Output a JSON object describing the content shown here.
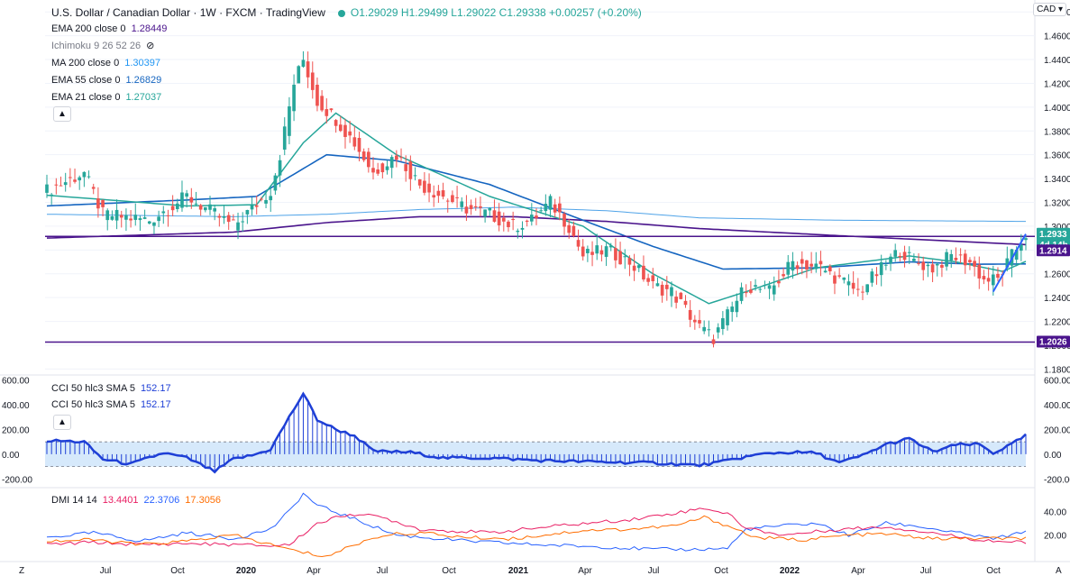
{
  "header": {
    "symbol": "U.S. Dollar / Canadian Dollar · 1W · FXCM · TradingView",
    "ohlc": "O1.29029  H1.29499  L1.29022  C1.29338  +0.00257 (+0.20%)",
    "currency": "CAD"
  },
  "indicators": [
    {
      "label": "EMA 200 close 0",
      "value": "1.28449",
      "color": "#4a148c"
    },
    {
      "label": "Ichimoku 9 26 52 26",
      "value": "",
      "color": "#787b86"
    },
    {
      "label": "MA 200 close 0",
      "value": "1.30397",
      "color": "#2196f3"
    },
    {
      "label": "EMA 55 close 0",
      "value": "1.26829",
      "color": "#1565c0"
    },
    {
      "label": "EMA 21 close 0",
      "value": "1.27037",
      "color": "#26a69a"
    }
  ],
  "cci_legends": [
    {
      "label": "CCI 50 hlc3 SMA 5",
      "value": "152.17"
    },
    {
      "label": "CCI 50 hlc3 SMA 5",
      "value": "152.17"
    }
  ],
  "dmi_legend": {
    "label": "DMI 14 14",
    "v1": "13.4401",
    "v2": "22.3706",
    "v3": "17.3056"
  },
  "colors": {
    "up": "#26a69a",
    "down": "#ef5350",
    "hline": "#4a148c",
    "cci": "#1e3fd6",
    "cci_band": "#d6e9fb",
    "dmi_plus": "#2962ff",
    "dmi_minus": "#e91e63",
    "adx": "#ff6d00"
  },
  "price_badges": [
    {
      "text": "1.2933",
      "value": 1.2933,
      "bg": "#26a69a"
    },
    {
      "text": "4d 14h",
      "value": 1.2933,
      "bg": "#26a69a"
    },
    {
      "text": "1.2914",
      "value": 1.2914,
      "bg": "#4a148c"
    },
    {
      "text": "1.2026",
      "value": 1.2026,
      "bg": "#4a148c"
    }
  ],
  "x_labels": [
    "Jul",
    "Oct",
    "2020",
    "Apr",
    "Jul",
    "Oct",
    "2021",
    "Apr",
    "Jul",
    "Oct",
    "2022",
    "Apr",
    "Jul",
    "Oct"
  ],
  "corner_labels": {
    "left": "Z",
    "right": "A"
  },
  "chart_data": [
    {
      "type": "candlestick",
      "title": "U.S. Dollar / Canadian Dollar, 1W",
      "y_ticks": [
        "1.4800",
        "1.4600",
        "1.4400",
        "1.4200",
        "1.4000",
        "1.3800",
        "1.3600",
        "1.3400",
        "1.3200",
        "1.3000",
        "1.2800",
        "1.2600",
        "1.2400",
        "1.2200",
        "1.2000",
        "1.1800"
      ],
      "ylim": [
        1.175,
        1.49
      ],
      "x_range": [
        "2019-04",
        "2022-10"
      ],
      "horizontal_lines": [
        1.2914,
        1.2026
      ],
      "close_anchors": [
        [
          0,
          1.33
        ],
        [
          8,
          1.345
        ],
        [
          12,
          1.31
        ],
        [
          22,
          1.305
        ],
        [
          30,
          1.325
        ],
        [
          36,
          1.31
        ],
        [
          40,
          1.3
        ],
        [
          44,
          1.315
        ],
        [
          48,
          1.33
        ],
        [
          50,
          1.36
        ],
        [
          53,
          1.42
        ],
        [
          55,
          1.44
        ],
        [
          58,
          1.405
        ],
        [
          62,
          1.39
        ],
        [
          66,
          1.37
        ],
        [
          70,
          1.345
        ],
        [
          75,
          1.36
        ],
        [
          80,
          1.335
        ],
        [
          85,
          1.325
        ],
        [
          90,
          1.315
        ],
        [
          95,
          1.31
        ],
        [
          100,
          1.3
        ],
        [
          104,
          1.305
        ],
        [
          108,
          1.32
        ],
        [
          112,
          1.3
        ],
        [
          115,
          1.275
        ],
        [
          120,
          1.28
        ],
        [
          125,
          1.27
        ],
        [
          130,
          1.25
        ],
        [
          134,
          1.245
        ],
        [
          137,
          1.23
        ],
        [
          140,
          1.215
        ],
        [
          143,
          1.206
        ],
        [
          146,
          1.225
        ],
        [
          150,
          1.25
        ],
        [
          155,
          1.245
        ],
        [
          160,
          1.27
        ],
        [
          166,
          1.265
        ],
        [
          170,
          1.255
        ],
        [
          174,
          1.245
        ],
        [
          178,
          1.26
        ],
        [
          183,
          1.28
        ],
        [
          186,
          1.27
        ],
        [
          190,
          1.265
        ],
        [
          194,
          1.275
        ],
        [
          198,
          1.27
        ],
        [
          201,
          1.255
        ],
        [
          204,
          1.255
        ],
        [
          207,
          1.275
        ],
        [
          210,
          1.2934
        ]
      ],
      "ema200_anchors": [
        [
          0,
          1.29
        ],
        [
          40,
          1.295
        ],
        [
          60,
          1.303
        ],
        [
          80,
          1.308
        ],
        [
          100,
          1.308
        ],
        [
          120,
          1.304
        ],
        [
          140,
          1.298
        ],
        [
          170,
          1.292
        ],
        [
          210,
          1.2845
        ]
      ],
      "ma200_anchors": [
        [
          0,
          1.31
        ],
        [
          40,
          1.308
        ],
        [
          60,
          1.31
        ],
        [
          80,
          1.314
        ],
        [
          100,
          1.316
        ],
        [
          120,
          1.313
        ],
        [
          140,
          1.307
        ],
        [
          170,
          1.305
        ],
        [
          210,
          1.304
        ]
      ],
      "ema55_anchors": [
        [
          0,
          1.317
        ],
        [
          30,
          1.322
        ],
        [
          45,
          1.325
        ],
        [
          60,
          1.36
        ],
        [
          75,
          1.355
        ],
        [
          95,
          1.335
        ],
        [
          115,
          1.305
        ],
        [
          130,
          1.283
        ],
        [
          145,
          1.264
        ],
        [
          165,
          1.265
        ],
        [
          185,
          1.27
        ],
        [
          200,
          1.268
        ],
        [
          210,
          1.2683
        ]
      ],
      "ema21_anchors": [
        [
          0,
          1.326
        ],
        [
          30,
          1.317
        ],
        [
          45,
          1.318
        ],
        [
          55,
          1.37
        ],
        [
          62,
          1.395
        ],
        [
          75,
          1.36
        ],
        [
          95,
          1.325
        ],
        [
          115,
          1.3
        ],
        [
          130,
          1.26
        ],
        [
          142,
          1.235
        ],
        [
          150,
          1.245
        ],
        [
          165,
          1.265
        ],
        [
          185,
          1.275
        ],
        [
          195,
          1.27
        ],
        [
          205,
          1.262
        ],
        [
          210,
          1.2704
        ]
      ]
    },
    {
      "type": "bar",
      "title": "CCI 50 hlc3 SMA 5",
      "y_ticks": [
        "600.00",
        "400.00",
        "200.00",
        "0.00",
        "-200.00"
      ],
      "ylim": [
        -270,
        640
      ],
      "band": [
        -100,
        100
      ],
      "anchors": [
        [
          0,
          110
        ],
        [
          8,
          100
        ],
        [
          12,
          -40
        ],
        [
          18,
          -80
        ],
        [
          25,
          10
        ],
        [
          30,
          -30
        ],
        [
          36,
          -140
        ],
        [
          40,
          -40
        ],
        [
          44,
          -10
        ],
        [
          48,
          40
        ],
        [
          52,
          300
        ],
        [
          55,
          490
        ],
        [
          58,
          280
        ],
        [
          62,
          200
        ],
        [
          66,
          150
        ],
        [
          70,
          25
        ],
        [
          78,
          15
        ],
        [
          85,
          -30
        ],
        [
          95,
          -30
        ],
        [
          105,
          -50
        ],
        [
          115,
          -60
        ],
        [
          130,
          -70
        ],
        [
          140,
          -90
        ],
        [
          145,
          -60
        ],
        [
          150,
          -20
        ],
        [
          155,
          10
        ],
        [
          160,
          15
        ],
        [
          165,
          10
        ],
        [
          170,
          -70
        ],
        [
          175,
          -10
        ],
        [
          180,
          80
        ],
        [
          185,
          125
        ],
        [
          190,
          20
        ],
        [
          195,
          75
        ],
        [
          200,
          80
        ],
        [
          203,
          10
        ],
        [
          207,
          80
        ],
        [
          210,
          152
        ]
      ]
    },
    {
      "type": "line",
      "title": "DMI 14 14",
      "y_ticks": [
        "40.00",
        "20.00"
      ],
      "ylim": [
        0,
        60
      ],
      "series": [
        {
          "name": "DMI+",
          "anchors": [
            [
              0,
              18
            ],
            [
              10,
              22
            ],
            [
              20,
              15
            ],
            [
              30,
              22
            ],
            [
              40,
              17
            ],
            [
              48,
              25
            ],
            [
              52,
              40
            ],
            [
              55,
              55
            ],
            [
              58,
              45
            ],
            [
              65,
              35
            ],
            [
              75,
              20
            ],
            [
              90,
              15
            ],
            [
              105,
              12
            ],
            [
              120,
              10
            ],
            [
              130,
              8
            ],
            [
              140,
              8
            ],
            [
              146,
              9
            ],
            [
              150,
              25
            ],
            [
              158,
              28
            ],
            [
              165,
              30
            ],
            [
              172,
              20
            ],
            [
              180,
              30
            ],
            [
              186,
              28
            ],
            [
              195,
              22
            ],
            [
              203,
              17
            ],
            [
              210,
              22.37
            ]
          ]
        },
        {
          "name": "DMI-",
          "anchors": [
            [
              0,
              12
            ],
            [
              10,
              14
            ],
            [
              20,
              12
            ],
            [
              30,
              13
            ],
            [
              40,
              12
            ],
            [
              48,
              11
            ],
            [
              52,
              12
            ],
            [
              58,
              30
            ],
            [
              65,
              38
            ],
            [
              72,
              35
            ],
            [
              80,
              25
            ],
            [
              95,
              22
            ],
            [
              110,
              28
            ],
            [
              125,
              33
            ],
            [
              137,
              40
            ],
            [
              141,
              43
            ],
            [
              146,
              38
            ],
            [
              150,
              26
            ],
            [
              158,
              20
            ],
            [
              170,
              25
            ],
            [
              180,
              27
            ],
            [
              190,
              22
            ],
            [
              200,
              16
            ],
            [
              210,
              13.44
            ]
          ]
        },
        {
          "name": "ADX",
          "anchors": [
            [
              0,
              15
            ],
            [
              10,
              16
            ],
            [
              20,
              12
            ],
            [
              30,
              15
            ],
            [
              40,
              20
            ],
            [
              48,
              12
            ],
            [
              54,
              6
            ],
            [
              60,
              2
            ],
            [
              66,
              12
            ],
            [
              72,
              20
            ],
            [
              80,
              22
            ],
            [
              90,
              18
            ],
            [
              100,
              17
            ],
            [
              115,
              24
            ],
            [
              125,
              25
            ],
            [
              135,
              28
            ],
            [
              141,
              35
            ],
            [
              146,
              28
            ],
            [
              152,
              18
            ],
            [
              162,
              16
            ],
            [
              172,
              20
            ],
            [
              180,
              21
            ],
            [
              190,
              17
            ],
            [
              200,
              17
            ],
            [
              210,
              17.31
            ]
          ]
        }
      ]
    }
  ]
}
